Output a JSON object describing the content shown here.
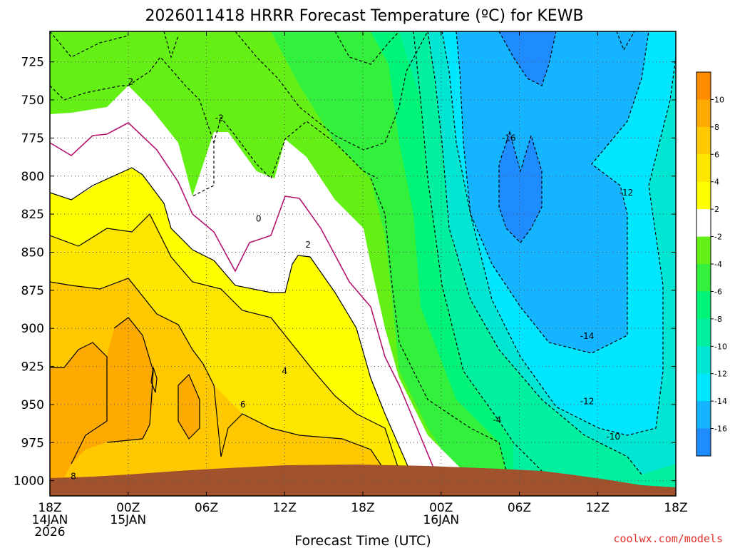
{
  "chart_data": {
    "type": "heatmap",
    "title": "2026011418 HRRR Forecast Temperature (ºC) for KEWB",
    "xlabel": "Forecast Time (UTC)",
    "ylabel": "",
    "credit": "coolwx.com/models",
    "xlim_hours": [
      0,
      48
    ],
    "ylim_hpa": [
      1010,
      705
    ],
    "y_ticks": [
      725,
      750,
      775,
      800,
      825,
      850,
      875,
      900,
      925,
      950,
      975,
      1000
    ],
    "x_ticks": [
      {
        "hour": 0,
        "lines": [
          "18Z",
          "14JAN",
          "2026"
        ]
      },
      {
        "hour": 6,
        "lines": [
          "00Z",
          "15JAN"
        ]
      },
      {
        "hour": 12,
        "lines": [
          "06Z"
        ]
      },
      {
        "hour": 18,
        "lines": [
          "12Z"
        ]
      },
      {
        "hour": 24,
        "lines": [
          "18Z"
        ]
      },
      {
        "hour": 30,
        "lines": [
          "00Z",
          "16JAN"
        ]
      },
      {
        "hour": 36,
        "lines": [
          "06Z"
        ]
      },
      {
        "hour": 42,
        "lines": [
          "12Z"
        ]
      },
      {
        "hour": 48,
        "lines": [
          "18Z"
        ]
      }
    ],
    "colorbar": {
      "bins": [
        {
          "min": -18,
          "max": -16,
          "color": "#1e8cff"
        },
        {
          "min": -16,
          "max": -14,
          "color": "#14b4ff"
        },
        {
          "min": -14,
          "max": -12,
          "color": "#00e6ff"
        },
        {
          "min": -12,
          "max": -10,
          "color": "#00e6d2"
        },
        {
          "min": -10,
          "max": -8,
          "color": "#00f0a0"
        },
        {
          "min": -8,
          "max": -6,
          "color": "#00f578"
        },
        {
          "min": -6,
          "max": -4,
          "color": "#32f03c"
        },
        {
          "min": -4,
          "max": -2,
          "color": "#64f014"
        },
        {
          "min": -2,
          "max": 2,
          "color": "#ffffff"
        },
        {
          "min": 2,
          "max": 4,
          "color": "#ffff00"
        },
        {
          "min": 4,
          "max": 6,
          "color": "#ffe600"
        },
        {
          "min": 6,
          "max": 8,
          "color": "#ffc800"
        },
        {
          "min": 8,
          "max": 10,
          "color": "#ffaa00"
        },
        {
          "min": 10,
          "max": 12,
          "color": "#ff8c00"
        }
      ],
      "tick_labels": [
        "10",
        "8",
        "6",
        "4",
        "2",
        "-2",
        "-4",
        "-6",
        "-8",
        "-10",
        "-12",
        "-14",
        "-16"
      ]
    },
    "zero_contour_color": "#b4146e",
    "ground_color": "#a0522d",
    "contour_labels": [
      {
        "value": "2",
        "hour": 6.2,
        "p": 738
      },
      {
        "value": "-2",
        "hour": 13.0,
        "p": 762
      },
      {
        "value": "0",
        "hour": 16.0,
        "p": 828
      },
      {
        "value": "2",
        "hour": 19.8,
        "p": 845
      },
      {
        "value": "4",
        "hour": 18.0,
        "p": 928
      },
      {
        "value": "6",
        "hour": 14.8,
        "p": 950
      },
      {
        "value": "8",
        "hour": 1.8,
        "p": 997
      },
      {
        "value": "-16",
        "hour": 35.2,
        "p": 775
      },
      {
        "value": "-12",
        "hour": 44.2,
        "p": 811
      },
      {
        "value": "-14",
        "hour": 41.2,
        "p": 905
      },
      {
        "value": "-12",
        "hour": 41.2,
        "p": 948
      },
      {
        "value": "-10",
        "hour": 43.2,
        "p": 971
      },
      {
        "value": "-4",
        "hour": 34.3,
        "p": 960
      }
    ]
  }
}
